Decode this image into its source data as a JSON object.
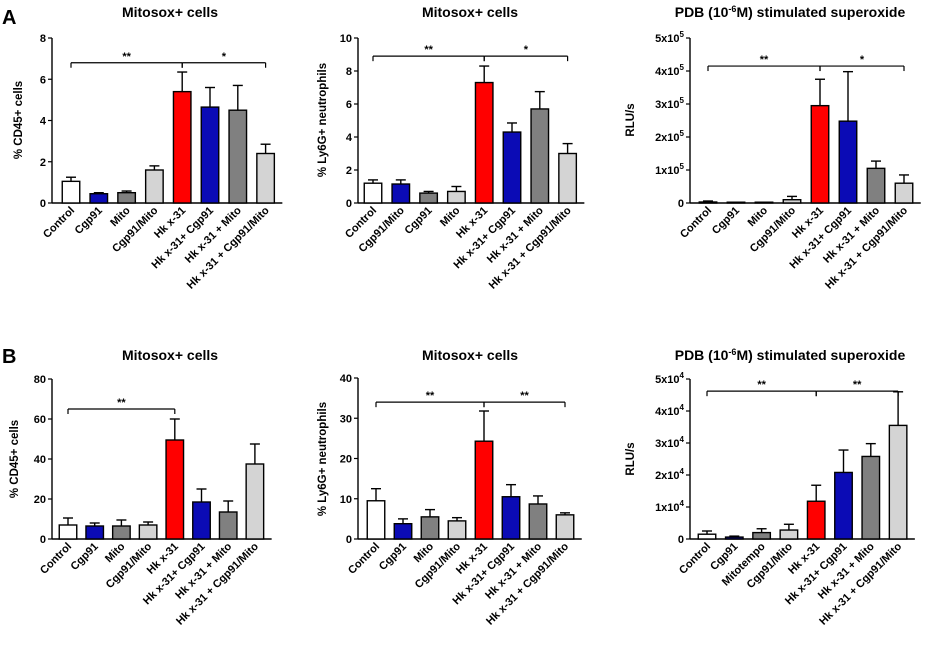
{
  "panel_labels": [
    "A",
    "B"
  ],
  "colors": {
    "white": "#ffffff",
    "blue": "#0b0bb5",
    "dark_grey": "#808080",
    "light_grey": "#d4d4d4",
    "red": "#ff0000",
    "axis": "#000000"
  },
  "chart_data": [
    {
      "id": "A1",
      "type": "bar",
      "panel": "A",
      "title": "Mitosox+ cells",
      "ylabel": "% CD45+ cells",
      "ylim": [
        0,
        8
      ],
      "yticks": [
        "0",
        "2",
        "4",
        "6",
        "8"
      ],
      "ytick_values": [
        0,
        2,
        4,
        6,
        8
      ],
      "categories": [
        "Control",
        "Cgp91",
        "Mito",
        "Cgp91/Mito",
        "Hk x-31",
        "Hk x-31+ Cgp91",
        "Hk x-31 + Mito",
        "Hk x-31 + Cgp91/Mito"
      ],
      "values": [
        1.05,
        0.45,
        0.5,
        1.6,
        5.4,
        4.65,
        4.5,
        2.4
      ],
      "errors": [
        0.2,
        0.05,
        0.08,
        0.2,
        0.95,
        0.95,
        1.2,
        0.45
      ],
      "bar_colors": [
        "white",
        "blue",
        "dark_grey",
        "light_grey",
        "red",
        "blue",
        "dark_grey",
        "light_grey"
      ],
      "significance": [
        {
          "from": 0,
          "to": 4,
          "label": "**",
          "y": 6.8
        },
        {
          "from": 4,
          "to": 7,
          "label": "*",
          "y": 6.8
        }
      ]
    },
    {
      "id": "A2",
      "type": "bar",
      "panel": "A",
      "title": "Mitosox+ cells",
      "ylabel": "% Ly6G+ neutrophils",
      "ylim": [
        0,
        10
      ],
      "yticks": [
        "0",
        "2",
        "4",
        "6",
        "8",
        "10"
      ],
      "ytick_values": [
        0,
        2,
        4,
        6,
        8,
        10
      ],
      "categories": [
        "Control",
        "Cgp91/Mito",
        "Cgp91",
        "Mito",
        "Hk x-31",
        "Hk x-31+ Cgp91",
        "Hk x-31 + Mito",
        "Hk x-31 + Cgp91/Mito"
      ],
      "values": [
        1.2,
        1.15,
        0.6,
        0.7,
        7.3,
        4.3,
        5.7,
        3.0
      ],
      "errors": [
        0.2,
        0.25,
        0.1,
        0.3,
        1.0,
        0.55,
        1.05,
        0.6
      ],
      "bar_colors": [
        "white",
        "blue",
        "dark_grey",
        "light_grey",
        "red",
        "blue",
        "dark_grey",
        "light_grey"
      ],
      "significance": [
        {
          "from": 0,
          "to": 4,
          "label": "**",
          "y": 8.9
        },
        {
          "from": 4,
          "to": 7,
          "label": "*",
          "y": 8.9
        }
      ]
    },
    {
      "id": "A3",
      "type": "bar",
      "panel": "A",
      "title": "PDB (10-6M) stimulated superoxide",
      "title_main": "PDB (10",
      "title_sup": "-6",
      "title_end": "M) stimulated superoxide",
      "ylabel": "RLU/s",
      "ylim": [
        0,
        500000
      ],
      "yticks": [
        "0",
        "1x10",
        "2x10",
        "3x10",
        "4x10",
        "5x10"
      ],
      "ytick_exp": [
        "",
        "5",
        "5",
        "5",
        "5",
        "5"
      ],
      "ytick_values": [
        0,
        100000,
        200000,
        300000,
        400000,
        500000
      ],
      "categories": [
        "Control",
        "Cgp91",
        "Mito",
        "Cgp91/Mito",
        "Hk x-31",
        "Hk x-31+ Cgp91",
        "Hk x-31 + Mito",
        "Hk x-31 + Cgp91/Mito"
      ],
      "values": [
        3000,
        500,
        500,
        10000,
        295000,
        248000,
        105000,
        60000
      ],
      "errors": [
        3000,
        0,
        0,
        10000,
        80000,
        150000,
        22000,
        25000
      ],
      "bar_colors": [
        "white",
        "blue",
        "dark_grey",
        "light_grey",
        "red",
        "blue",
        "dark_grey",
        "light_grey"
      ],
      "significance": [
        {
          "from": 0,
          "to": 4,
          "label": "**",
          "y": 415000
        },
        {
          "from": 4,
          "to": 7,
          "label": "*",
          "y": 415000
        }
      ]
    },
    {
      "id": "B1",
      "type": "bar",
      "panel": "B",
      "title": "Mitosox+ cells",
      "ylabel": "% CD45+ cells",
      "ylim": [
        0,
        80
      ],
      "yticks": [
        "0",
        "20",
        "40",
        "60",
        "80"
      ],
      "ytick_values": [
        0,
        20,
        40,
        60,
        80
      ],
      "categories": [
        "Control",
        "Cgp91",
        "Mito",
        "Cgp91/Mito",
        "Hk x-31",
        "Hk x-31+ Cgp91",
        "Hk x-31 + Mito",
        "Hk x-31 + Cgp91/Mito"
      ],
      "values": [
        7,
        6.5,
        6.5,
        7,
        49.5,
        18.5,
        13.5,
        37.5
      ],
      "errors": [
        3.5,
        1.5,
        3,
        1.5,
        10.5,
        6.5,
        5.5,
        10
      ],
      "bar_colors": [
        "white",
        "blue",
        "dark_grey",
        "light_grey",
        "red",
        "blue",
        "dark_grey",
        "light_grey"
      ],
      "significance": [
        {
          "from": 0,
          "to": 4,
          "label": "**",
          "y": 65
        }
      ]
    },
    {
      "id": "B2",
      "type": "bar",
      "panel": "B",
      "title": "Mitosox+ cells",
      "ylabel": "% Ly6G+ neutrophils",
      "ylim": [
        0,
        40
      ],
      "yticks": [
        "0",
        "10",
        "20",
        "30",
        "40"
      ],
      "ytick_values": [
        0,
        10,
        20,
        30,
        40
      ],
      "categories": [
        "Control",
        "Cgp91",
        "Mito",
        "Cgp91/Mito",
        "Hk x-31",
        "Hk x-31+ Cgp91",
        "Hk x-31 + Mito",
        "Hk x-31 + Cgp91/Mito"
      ],
      "values": [
        9.5,
        3.8,
        5.5,
        4.5,
        24.3,
        10.5,
        8.7,
        6
      ],
      "errors": [
        3,
        1.2,
        1.8,
        0.8,
        7.5,
        3,
        2,
        0.5
      ],
      "bar_colors": [
        "white",
        "blue",
        "dark_grey",
        "light_grey",
        "red",
        "blue",
        "dark_grey",
        "light_grey"
      ],
      "significance": [
        {
          "from": 0,
          "to": 4,
          "label": "**",
          "y": 34
        },
        {
          "from": 4,
          "to": 7,
          "label": "**",
          "y": 34
        }
      ]
    },
    {
      "id": "B3",
      "type": "bar",
      "panel": "B",
      "title": "PDB (10-6M) stimulated superoxide",
      "title_main": "PDB (10",
      "title_sup": "-6",
      "title_end": "M) stimulated superoxide",
      "ylabel": "RLU/s",
      "ylim": [
        0,
        50000
      ],
      "yticks": [
        "0",
        "1x10",
        "2x10",
        "3x10",
        "4x10",
        "5x10"
      ],
      "ytick_exp": [
        "",
        "4",
        "4",
        "4",
        "4",
        "4"
      ],
      "ytick_values": [
        0,
        10000,
        20000,
        30000,
        40000,
        50000
      ],
      "categories": [
        "Control",
        "Cgp91",
        "Mitotempo",
        "Cgp91/Mito",
        "Hk x-31",
        "Hk x-31+ Cgp91",
        "Hk x-31 + Mito",
        "Hk x-31 + Cgp91/Mito"
      ],
      "values": [
        1500,
        600,
        2000,
        2800,
        11800,
        20800,
        25800,
        35500
      ],
      "errors": [
        1000,
        300,
        1200,
        1800,
        5000,
        7000,
        4000,
        10500
      ],
      "bar_colors": [
        "white",
        "blue",
        "dark_grey",
        "light_grey",
        "red",
        "blue",
        "dark_grey",
        "light_grey"
      ],
      "significance": [
        {
          "from": 0,
          "to": 4,
          "label": "**",
          "y": 46200
        },
        {
          "from": 4,
          "to": 7,
          "label": "**",
          "y": 46200
        }
      ]
    }
  ]
}
